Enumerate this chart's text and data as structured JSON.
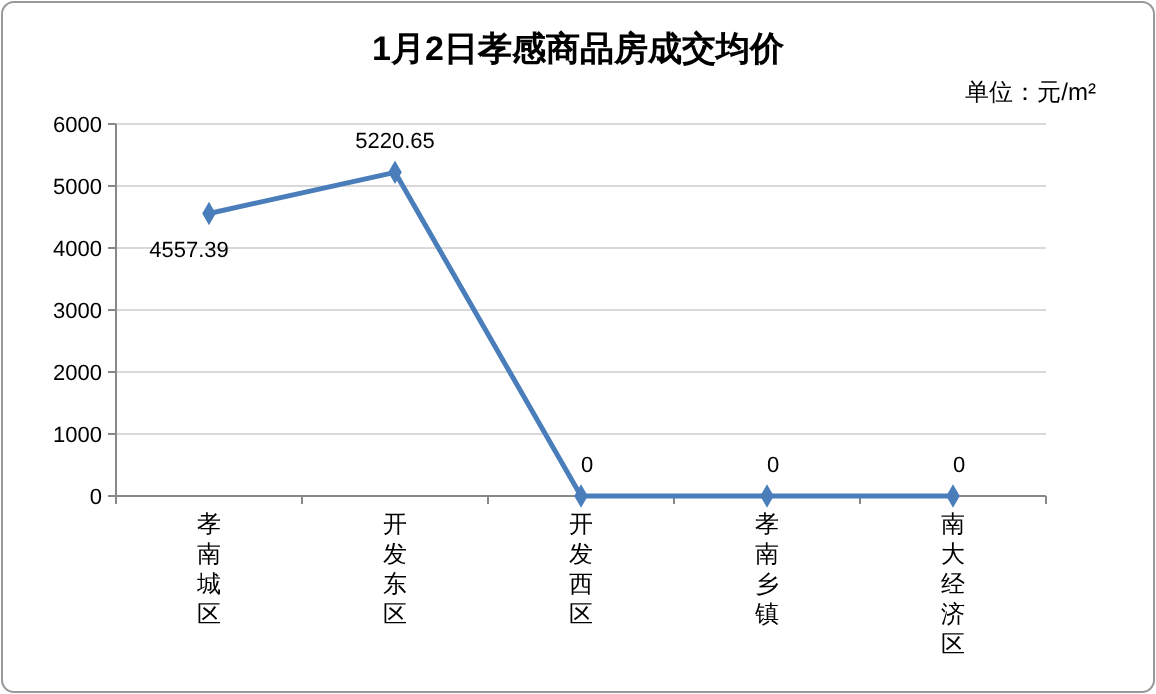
{
  "chart_data": {
    "type": "line",
    "title": "1月2日孝感商品房成交均价",
    "annotations": [
      "单位：元/m²"
    ],
    "categories": [
      "孝南城区",
      "开发东区",
      "开发西区",
      "孝南乡镇",
      "南大经济区"
    ],
    "series": [
      {
        "color": "#4a7ebb",
        "values": [
          4557.39,
          5220.65,
          0,
          0,
          0
        ]
      }
    ],
    "ylim": [
      0,
      6000
    ],
    "yticks": [
      0,
      1000,
      2000,
      3000,
      4000,
      5000,
      6000
    ],
    "grid": "y",
    "marker": "diamond",
    "line_style": "solid",
    "data_labels": true
  }
}
